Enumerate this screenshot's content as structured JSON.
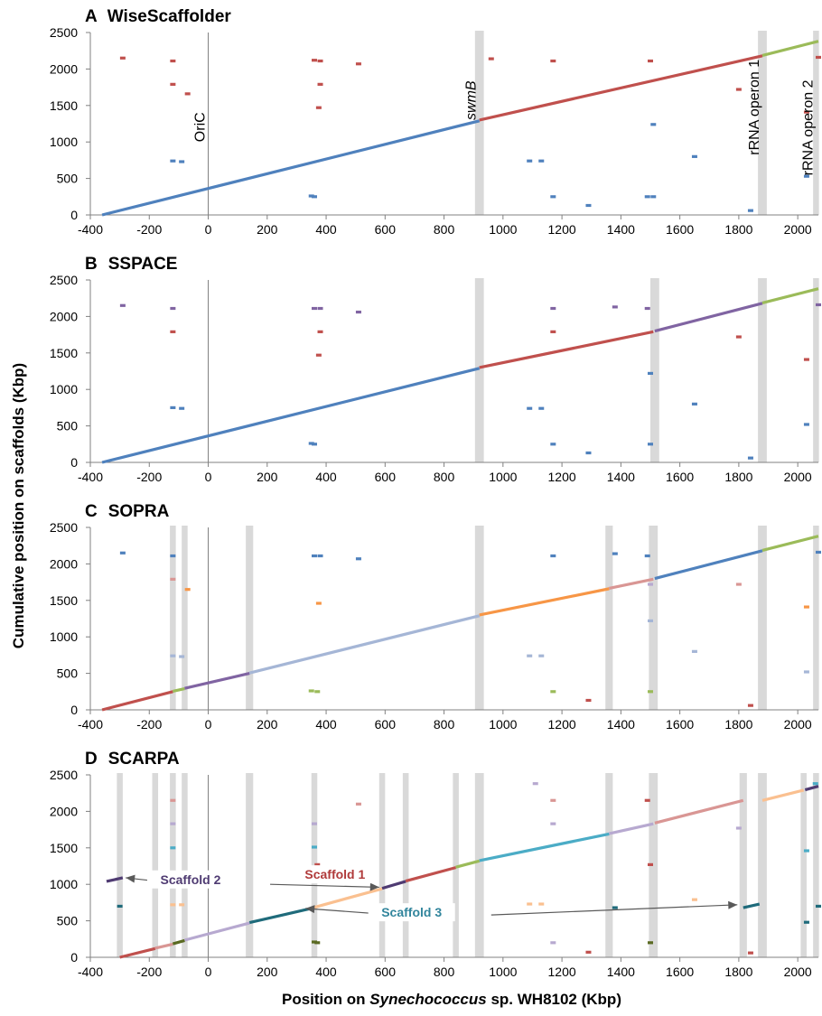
{
  "figure": {
    "ylabel": "Cumulative position on scaffolds (Kbp)",
    "xlabel_prefix": "Position on ",
    "xlabel_species": "Synechococcus",
    "xlabel_suffix": " sp. WH8102 (Kbp)"
  },
  "palette": {
    "blue": "#4f81bd",
    "red": "#c0504d",
    "green": "#9bbb59",
    "purple": "#8064a2",
    "orange": "#f79646",
    "lightblue": "#a5b6d6",
    "pink": "#d99694",
    "cyan": "#4bacc6",
    "teal": "#1f6b7b",
    "peach": "#fac090",
    "lavender": "#b7a9d0",
    "darkpurple": "#4f3b72",
    "olive": "#5a6a22",
    "darkorange": "#e36c09",
    "highlight": "#d9d9d9",
    "axis": "#808080",
    "label_s2": "#4f3b72",
    "label_s1": "#b03a3a",
    "label_s3": "#31859c"
  },
  "chart_data": [
    {
      "panel": "A",
      "title": "WiseScaffolder",
      "type": "scatter",
      "xlim": [
        -400,
        2070
      ],
      "ylim": [
        0,
        2500
      ],
      "xticks": [
        "-400",
        "-200",
        "0",
        "200",
        "400",
        "600",
        "800",
        "1000",
        "1200",
        "1400",
        "1600",
        "1800",
        "2000"
      ],
      "yticks": [
        "0",
        "500",
        "1000",
        "1500",
        "2000",
        "2500"
      ],
      "highlights": [
        {
          "x": 920,
          "w": 30
        },
        {
          "x": 1880,
          "w": 30
        },
        {
          "x": 2062,
          "w": 20
        }
      ],
      "annotations": [
        {
          "text": "OriC",
          "x": 0,
          "y": 1000,
          "style": "normal"
        },
        {
          "text": "swmB",
          "x": 920,
          "y": 1300,
          "style": "italic"
        },
        {
          "text": "rRNA operon 1",
          "x": 1880,
          "y": 820,
          "style": "normal"
        },
        {
          "text": "rRNA operon 2",
          "x": 2062,
          "y": 540,
          "style": "normal"
        }
      ],
      "segments": [
        {
          "x1": -360,
          "y1": 0,
          "x2": 920,
          "y2": 1290,
          "c": "blue"
        },
        {
          "x1": 920,
          "y1": 1300,
          "x2": 1880,
          "y2": 2180,
          "c": "red"
        },
        {
          "x1": 1880,
          "y1": 2185,
          "x2": 2070,
          "y2": 2380,
          "c": "green"
        }
      ],
      "dots": [
        [
          -290,
          2150,
          "red"
        ],
        [
          -120,
          2110,
          "red"
        ],
        [
          -120,
          1790,
          "red"
        ],
        [
          -70,
          1660,
          "red"
        ],
        [
          -120,
          740,
          "blue"
        ],
        [
          -90,
          730,
          "blue"
        ],
        [
          360,
          2120,
          "red"
        ],
        [
          380,
          2110,
          "red"
        ],
        [
          380,
          1790,
          "red"
        ],
        [
          375,
          1470,
          "red"
        ],
        [
          350,
          260,
          "blue"
        ],
        [
          360,
          250,
          "blue"
        ],
        [
          510,
          2070,
          "red"
        ],
        [
          960,
          2140,
          "red"
        ],
        [
          1090,
          740,
          "blue"
        ],
        [
          1130,
          740,
          "blue"
        ],
        [
          1170,
          2110,
          "red"
        ],
        [
          1170,
          250,
          "blue"
        ],
        [
          1290,
          130,
          "blue"
        ],
        [
          1500,
          2110,
          "red"
        ],
        [
          1510,
          1240,
          "blue"
        ],
        [
          1490,
          250,
          "blue"
        ],
        [
          1510,
          250,
          "blue"
        ],
        [
          1650,
          800,
          "blue"
        ],
        [
          1800,
          1720,
          "red"
        ],
        [
          1840,
          60,
          "blue"
        ],
        [
          2030,
          1410,
          "red"
        ],
        [
          2030,
          530,
          "blue"
        ],
        [
          2070,
          2160,
          "red"
        ]
      ]
    },
    {
      "panel": "B",
      "title": "SSPACE",
      "type": "scatter",
      "xlim": [
        -400,
        2070
      ],
      "ylim": [
        0,
        2500
      ],
      "xticks": [
        "-400",
        "-200",
        "0",
        "200",
        "400",
        "600",
        "800",
        "1000",
        "1200",
        "1400",
        "1600",
        "1800",
        "2000"
      ],
      "yticks": [
        "0",
        "500",
        "1000",
        "1500",
        "2000",
        "2500"
      ],
      "highlights": [
        {
          "x": 920,
          "w": 30
        },
        {
          "x": 1515,
          "w": 30
        },
        {
          "x": 1880,
          "w": 30
        },
        {
          "x": 2062,
          "w": 20
        }
      ],
      "annotations": [],
      "segments": [
        {
          "x1": -360,
          "y1": 0,
          "x2": 920,
          "y2": 1290,
          "c": "blue"
        },
        {
          "x1": 920,
          "y1": 1300,
          "x2": 1510,
          "y2": 1790,
          "c": "red"
        },
        {
          "x1": 1515,
          "y1": 1800,
          "x2": 1880,
          "y2": 2180,
          "c": "purple"
        },
        {
          "x1": 1880,
          "y1": 2185,
          "x2": 2070,
          "y2": 2380,
          "c": "green"
        }
      ],
      "dots": [
        [
          -290,
          2150,
          "purple"
        ],
        [
          -120,
          2110,
          "purple"
        ],
        [
          -120,
          1790,
          "red"
        ],
        [
          -120,
          750,
          "blue"
        ],
        [
          -90,
          740,
          "blue"
        ],
        [
          360,
          2110,
          "purple"
        ],
        [
          380,
          2110,
          "purple"
        ],
        [
          380,
          1790,
          "red"
        ],
        [
          375,
          1470,
          "red"
        ],
        [
          350,
          260,
          "blue"
        ],
        [
          360,
          250,
          "blue"
        ],
        [
          510,
          2060,
          "purple"
        ],
        [
          1090,
          740,
          "blue"
        ],
        [
          1130,
          740,
          "blue"
        ],
        [
          1170,
          2110,
          "purple"
        ],
        [
          1170,
          1790,
          "red"
        ],
        [
          1170,
          250,
          "blue"
        ],
        [
          1290,
          130,
          "blue"
        ],
        [
          1380,
          2130,
          "purple"
        ],
        [
          1490,
          2110,
          "purple"
        ],
        [
          1500,
          1220,
          "blue"
        ],
        [
          1500,
          250,
          "blue"
        ],
        [
          1650,
          800,
          "blue"
        ],
        [
          1800,
          1720,
          "red"
        ],
        [
          1840,
          60,
          "blue"
        ],
        [
          2030,
          1410,
          "red"
        ],
        [
          2030,
          520,
          "blue"
        ],
        [
          2070,
          2160,
          "purple"
        ]
      ]
    },
    {
      "panel": "C",
      "title": "SOPRA",
      "type": "scatter",
      "xlim": [
        -400,
        2070
      ],
      "ylim": [
        0,
        2500
      ],
      "xticks": [
        "-400",
        "-200",
        "0",
        "200",
        "400",
        "600",
        "800",
        "1000",
        "1200",
        "1400",
        "1600",
        "1800",
        "2000"
      ],
      "yticks": [
        "0",
        "500",
        "1000",
        "1500",
        "2000",
        "2500"
      ],
      "highlights": [
        {
          "x": -120,
          "w": 20
        },
        {
          "x": -80,
          "w": 20
        },
        {
          "x": 140,
          "w": 25
        },
        {
          "x": 920,
          "w": 30
        },
        {
          "x": 1360,
          "w": 25
        },
        {
          "x": 1510,
          "w": 30
        },
        {
          "x": 1880,
          "w": 30
        },
        {
          "x": 2062,
          "w": 20
        }
      ],
      "annotations": [],
      "segments": [
        {
          "x1": -360,
          "y1": 0,
          "x2": -120,
          "y2": 250,
          "c": "red"
        },
        {
          "x1": -120,
          "y1": 255,
          "x2": -80,
          "y2": 290,
          "c": "green"
        },
        {
          "x1": -80,
          "y1": 295,
          "x2": 140,
          "y2": 500,
          "c": "purple"
        },
        {
          "x1": 140,
          "y1": 505,
          "x2": 920,
          "y2": 1290,
          "c": "lightblue"
        },
        {
          "x1": 920,
          "y1": 1300,
          "x2": 1360,
          "y2": 1660,
          "c": "orange"
        },
        {
          "x1": 1360,
          "y1": 1665,
          "x2": 1510,
          "y2": 1790,
          "c": "pink"
        },
        {
          "x1": 1515,
          "y1": 1800,
          "x2": 1880,
          "y2": 2180,
          "c": "blue"
        },
        {
          "x1": 1880,
          "y1": 2185,
          "x2": 2070,
          "y2": 2380,
          "c": "green"
        }
      ],
      "dots": [
        [
          -290,
          2150,
          "blue"
        ],
        [
          -120,
          2110,
          "blue"
        ],
        [
          -120,
          1790,
          "pink"
        ],
        [
          -70,
          1650,
          "orange"
        ],
        [
          -120,
          740,
          "lightblue"
        ],
        [
          -90,
          730,
          "lightblue"
        ],
        [
          360,
          2110,
          "blue"
        ],
        [
          380,
          2110,
          "blue"
        ],
        [
          375,
          1460,
          "orange"
        ],
        [
          350,
          260,
          "green"
        ],
        [
          370,
          250,
          "green"
        ],
        [
          510,
          2070,
          "blue"
        ],
        [
          1090,
          740,
          "lightblue"
        ],
        [
          1130,
          740,
          "lightblue"
        ],
        [
          1170,
          2110,
          "blue"
        ],
        [
          1170,
          250,
          "green"
        ],
        [
          1290,
          130,
          "red"
        ],
        [
          1380,
          2140,
          "blue"
        ],
        [
          1490,
          2110,
          "blue"
        ],
        [
          1500,
          1720,
          "lavender"
        ],
        [
          1500,
          1220,
          "lightblue"
        ],
        [
          1500,
          250,
          "green"
        ],
        [
          1650,
          800,
          "lightblue"
        ],
        [
          1800,
          1720,
          "pink"
        ],
        [
          1840,
          60,
          "red"
        ],
        [
          2030,
          1410,
          "orange"
        ],
        [
          2030,
          520,
          "lightblue"
        ],
        [
          2070,
          2160,
          "blue"
        ]
      ]
    },
    {
      "panel": "D",
      "title": "SCARPA",
      "type": "scatter",
      "xlim": [
        -400,
        2070
      ],
      "ylim": [
        0,
        2500
      ],
      "xticks": [
        "-400",
        "-200",
        "0",
        "200",
        "400",
        "600",
        "800",
        "1000",
        "1200",
        "1400",
        "1600",
        "1800",
        "2000"
      ],
      "yticks": [
        "0",
        "500",
        "1000",
        "1500",
        "2000",
        "2500"
      ],
      "highlights": [
        {
          "x": -300,
          "w": 20
        },
        {
          "x": -180,
          "w": 20
        },
        {
          "x": -120,
          "w": 20
        },
        {
          "x": -80,
          "w": 20
        },
        {
          "x": 140,
          "w": 25
        },
        {
          "x": 360,
          "w": 20
        },
        {
          "x": 590,
          "w": 20
        },
        {
          "x": 670,
          "w": 20
        },
        {
          "x": 840,
          "w": 20
        },
        {
          "x": 920,
          "w": 30
        },
        {
          "x": 1360,
          "w": 25
        },
        {
          "x": 1510,
          "w": 30
        },
        {
          "x": 1815,
          "w": 25
        },
        {
          "x": 1880,
          "w": 30
        },
        {
          "x": 2020,
          "w": 20
        },
        {
          "x": 2062,
          "w": 20
        }
      ],
      "annotations": [
        {
          "text": "Scaffold 2",
          "x": -60,
          "y": 1030,
          "style": "bold",
          "color": "label_s2"
        },
        {
          "text": "Scaffold 1",
          "x": 430,
          "y": 1100,
          "style": "bold",
          "color": "label_s1"
        },
        {
          "text": "Scaffold 3",
          "x": 690,
          "y": 580,
          "style": "bold",
          "color": "label_s3"
        }
      ],
      "arrows": [
        {
          "x1": -80,
          "y1": 1000,
          "x2": -280,
          "y2": 1090
        },
        {
          "x1": 210,
          "y1": 1000,
          "x2": 580,
          "y2": 960
        },
        {
          "x1": 630,
          "y1": 580,
          "x2": 330,
          "y2": 670
        },
        {
          "x1": 960,
          "y1": 580,
          "x2": 1795,
          "y2": 720
        }
      ],
      "segments": [
        {
          "x1": -300,
          "y1": 0,
          "x2": -180,
          "y2": 120,
          "c": "red"
        },
        {
          "x1": -180,
          "y1": 125,
          "x2": -120,
          "y2": 180,
          "c": "pink"
        },
        {
          "x1": -120,
          "y1": 185,
          "x2": -80,
          "y2": 230,
          "c": "olive"
        },
        {
          "x1": -80,
          "y1": 235,
          "x2": 140,
          "y2": 470,
          "c": "lavender"
        },
        {
          "x1": 140,
          "y1": 475,
          "x2": 360,
          "y2": 680,
          "c": "teal"
        },
        {
          "x1": 360,
          "y1": 685,
          "x2": 590,
          "y2": 940,
          "c": "peach"
        },
        {
          "x1": 590,
          "y1": 945,
          "x2": 670,
          "y2": 1040,
          "c": "darkpurple"
        },
        {
          "x1": 670,
          "y1": 1045,
          "x2": 840,
          "y2": 1230,
          "c": "red"
        },
        {
          "x1": 840,
          "y1": 1235,
          "x2": 920,
          "y2": 1320,
          "c": "green"
        },
        {
          "x1": 920,
          "y1": 1325,
          "x2": 1360,
          "y2": 1690,
          "c": "cyan"
        },
        {
          "x1": 1360,
          "y1": 1695,
          "x2": 1510,
          "y2": 1830,
          "c": "lavender"
        },
        {
          "x1": 1515,
          "y1": 1840,
          "x2": 1815,
          "y2": 2150,
          "c": "pink"
        },
        {
          "x1": 1880,
          "y1": 2150,
          "x2": 2020,
          "y2": 2290,
          "c": "peach"
        },
        {
          "x1": 2025,
          "y1": 2295,
          "x2": 2070,
          "y2": 2345,
          "c": "darkpurple"
        },
        {
          "x1": -345,
          "y1": 1040,
          "x2": -290,
          "y2": 1090,
          "c": "darkpurple"
        },
        {
          "x1": 1815,
          "y1": 680,
          "x2": 1870,
          "y2": 730,
          "c": "teal"
        }
      ],
      "dots": [
        [
          -300,
          700,
          "teal"
        ],
        [
          -120,
          2150,
          "pink"
        ],
        [
          -120,
          1830,
          "lavender"
        ],
        [
          -120,
          1500,
          "cyan"
        ],
        [
          -120,
          720,
          "peach"
        ],
        [
          -90,
          720,
          "peach"
        ],
        [
          360,
          1830,
          "lavender"
        ],
        [
          360,
          1510,
          "cyan"
        ],
        [
          370,
          1270,
          "red"
        ],
        [
          360,
          210,
          "olive"
        ],
        [
          370,
          200,
          "olive"
        ],
        [
          510,
          2100,
          "pink"
        ],
        [
          1090,
          730,
          "peach"
        ],
        [
          1130,
          730,
          "peach"
        ],
        [
          1110,
          2380,
          "lavender"
        ],
        [
          1170,
          2150,
          "pink"
        ],
        [
          1170,
          1830,
          "lavender"
        ],
        [
          1170,
          200,
          "lavender"
        ],
        [
          1290,
          70,
          "red"
        ],
        [
          1380,
          680,
          "teal"
        ],
        [
          1490,
          2150,
          "red"
        ],
        [
          1500,
          1270,
          "red"
        ],
        [
          1500,
          200,
          "olive"
        ],
        [
          1650,
          790,
          "peach"
        ],
        [
          1800,
          1770,
          "lavender"
        ],
        [
          1840,
          60,
          "red"
        ],
        [
          2030,
          1460,
          "cyan"
        ],
        [
          2030,
          480,
          "teal"
        ],
        [
          2070,
          700,
          "teal"
        ],
        [
          2060,
          2380,
          "cyan"
        ]
      ]
    }
  ]
}
